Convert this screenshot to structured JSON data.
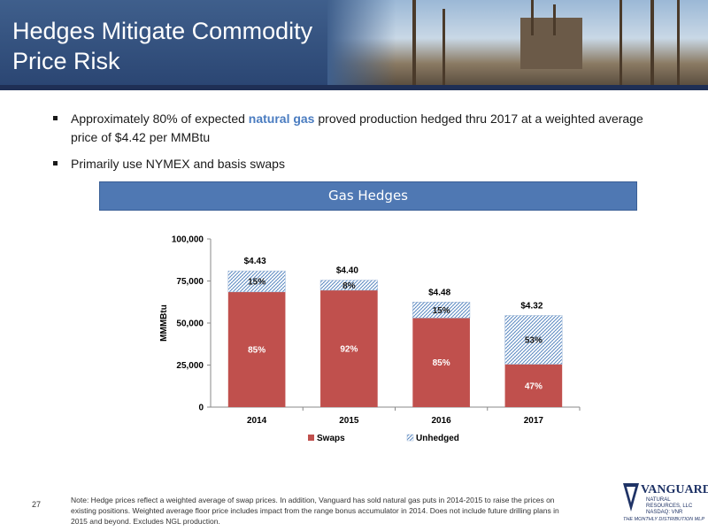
{
  "header": {
    "title_line1": "Hedges Mitigate Commodity",
    "title_line2": "Price Risk"
  },
  "bullets": {
    "b1_pre": "Approximately 80% of expected ",
    "b1_highlight": "natural gas",
    "b1_post": " proved production hedged thru 2017 at a weighted average price of $4.42 per MMBtu",
    "b2": "Primarily use NYMEX and basis swaps"
  },
  "banner": {
    "title": "Gas Hedges"
  },
  "chart_data": {
    "type": "bar",
    "stacked": true,
    "title": "Gas Hedges",
    "ylabel": "MMMBtu",
    "xlabel": "",
    "ylim": [
      0,
      100000
    ],
    "yticks": [
      "0",
      "25,000",
      "50,000",
      "75,000",
      "100,000"
    ],
    "ytick_values": [
      0,
      25000,
      50000,
      75000,
      100000
    ],
    "categories": [
      "2014",
      "2015",
      "2016",
      "2017"
    ],
    "series": [
      {
        "name": "Swaps",
        "color": "#c0504d",
        "values": [
          68500,
          69500,
          53000,
          25500
        ],
        "labels": [
          "85%",
          "92%",
          "85%",
          "47%"
        ]
      },
      {
        "name": "Unhedged",
        "color": "#4f81bd",
        "pattern": "hatch",
        "values": [
          12500,
          6000,
          9500,
          29000
        ],
        "labels": [
          "15%",
          "8%",
          "15%",
          "53%"
        ]
      }
    ],
    "price_labels": [
      "$4.43",
      "$4.40",
      "$4.48",
      "$4.32"
    ],
    "legend_position": "bottom",
    "grid": false
  },
  "footer": {
    "page_number": "27",
    "note": "Note: Hedge prices reflect a weighted average of swap prices. In addition, Vanguard has sold natural gas puts in 2014-2015 to raise the prices on existing positions. Weighted average floor price includes impact from the range bonus accumulator in 2014. Does not include future drilling plans in 2015 and beyond. Excludes NGL production."
  },
  "logo": {
    "word": "VANGUARD",
    "sub_line1": "NATURAL RESOURCES, LLC",
    "sub_line2": "NASDAQ: VNR",
    "tagline": "THE MONTHLY DISTRIBUTION MLP"
  }
}
